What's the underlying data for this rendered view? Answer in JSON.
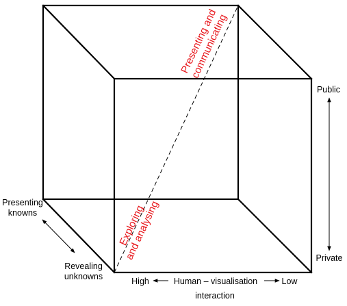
{
  "labels": {
    "public": "Public",
    "private": "Private",
    "presenting_knowns_1": "Presenting",
    "presenting_knowns_2": "knowns",
    "revealing_unknowns_1": "Revealing",
    "revealing_unknowns_2": "unknowns",
    "high": "High",
    "low": "Low",
    "interaction_1": "Human – visualisation",
    "interaction_2": "interaction",
    "presenting_communicating_1": "Presenting and",
    "presenting_communicating_2": "communicating",
    "exploring_analysing_1": "Exploring",
    "exploring_analysing_2": "and analysing"
  },
  "colors": {
    "edge": "#000000",
    "highlight_text": "#e8161b"
  }
}
